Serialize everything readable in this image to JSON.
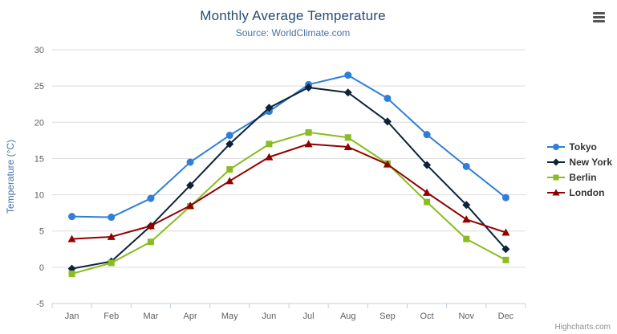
{
  "chart_data": {
    "type": "line",
    "title": "Monthly Average Temperature",
    "subtitle": "Source: WorldClimate.com",
    "categories": [
      "Jan",
      "Feb",
      "Mar",
      "Apr",
      "May",
      "Jun",
      "Jul",
      "Aug",
      "Sep",
      "Oct",
      "Nov",
      "Dec"
    ],
    "xlabel": "",
    "ylabel": "Temperature (°C)",
    "ylim": [
      -5,
      30
    ],
    "yticks": [
      -5,
      0,
      5,
      10,
      15,
      20,
      25,
      30
    ],
    "grid": true,
    "legend_position": "right",
    "series": [
      {
        "name": "Tokyo",
        "color": "#2f7ed8",
        "marker": "circle",
        "values": [
          7.0,
          6.9,
          9.5,
          14.5,
          18.2,
          21.5,
          25.2,
          26.5,
          23.3,
          18.3,
          13.9,
          9.6
        ]
      },
      {
        "name": "New York",
        "color": "#0d233a",
        "marker": "diamond",
        "values": [
          -0.2,
          0.8,
          5.7,
          11.3,
          17.0,
          22.0,
          24.8,
          24.1,
          20.1,
          14.1,
          8.6,
          2.5
        ]
      },
      {
        "name": "Berlin",
        "color": "#8bbc21",
        "marker": "square",
        "values": [
          -0.9,
          0.6,
          3.5,
          8.4,
          13.5,
          17.0,
          18.6,
          17.9,
          14.3,
          9.0,
          3.9,
          1.0
        ]
      },
      {
        "name": "London",
        "color": "#910000",
        "marker": "triangle",
        "values": [
          3.9,
          4.2,
          5.7,
          8.5,
          11.9,
          15.2,
          17.0,
          16.6,
          14.2,
          10.3,
          6.6,
          4.8
        ]
      }
    ],
    "colors": {
      "grid_line": "#dcdcdc",
      "axis_line": "#c0d0e0",
      "axis_label": "#606060",
      "axis_title": "#4572a7",
      "title": "#274b6d",
      "subtitle": "#4572a7"
    }
  },
  "credits": "Highcharts.com",
  "export_menu": {
    "icon": "hamburger-icon"
  }
}
